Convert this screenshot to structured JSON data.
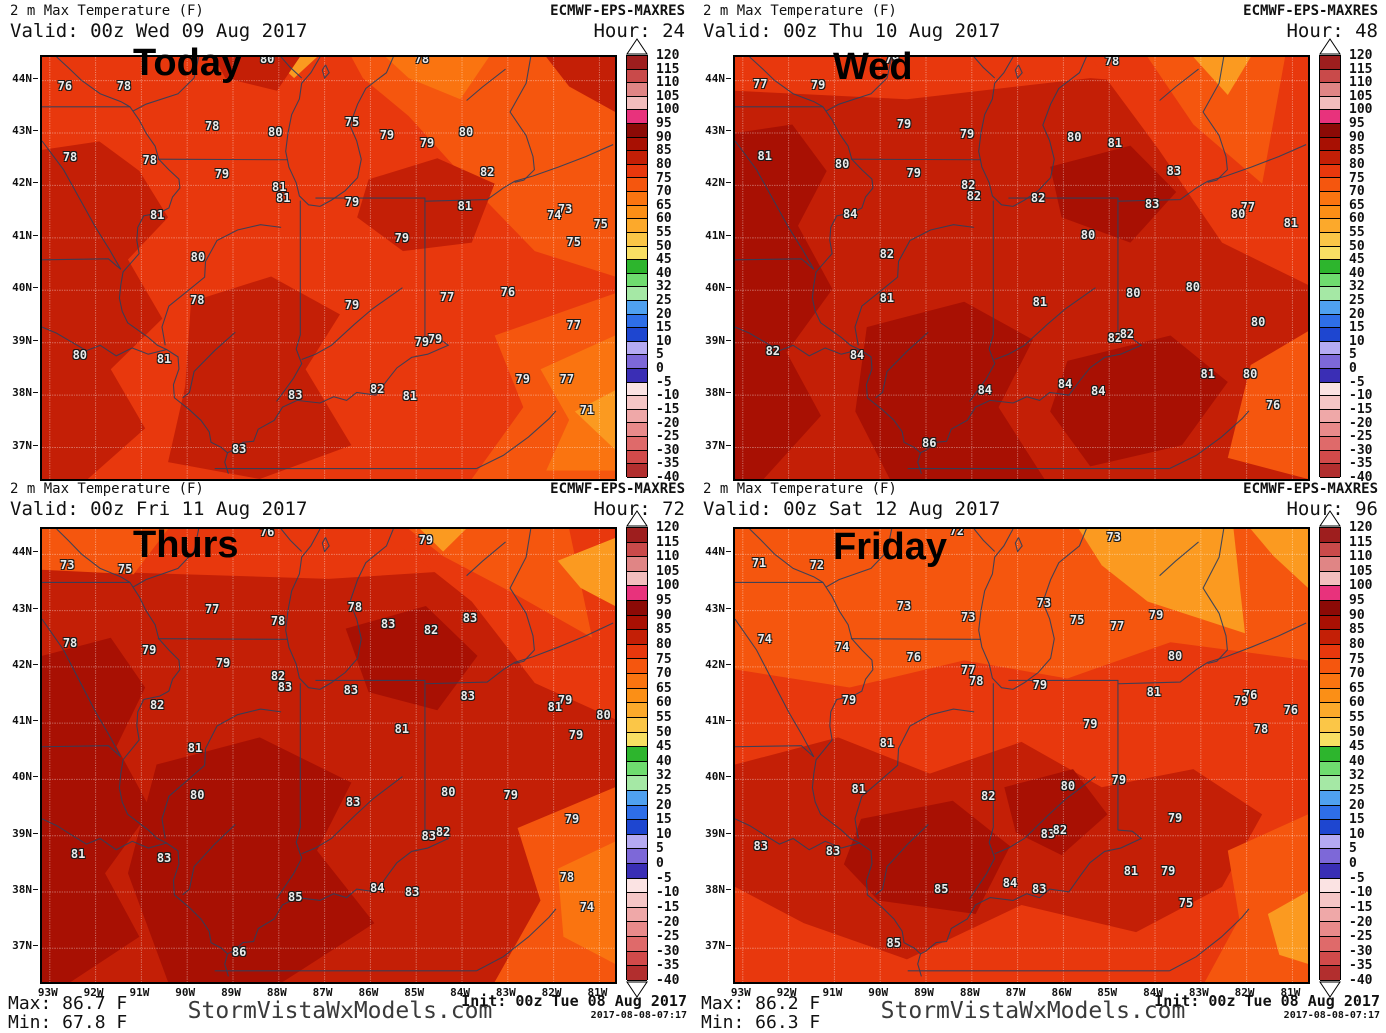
{
  "palette": {
    "base_hot": "#E8380D",
    "dark_red": "#C41F06",
    "maroon": "#A81003",
    "orange": "#F5560E",
    "light_orange": "#FA7410",
    "amber": "#FB9A20",
    "border_line": "#2F3F5C",
    "grid": "#FFFFFF"
  },
  "lat_labels": [
    "44N",
    "43N",
    "42N",
    "41N",
    "40N",
    "39N",
    "38N",
    "37N"
  ],
  "lon_labels": [
    "93W",
    "92W",
    "91W",
    "90W",
    "89W",
    "88W",
    "87W",
    "86W",
    "85W",
    "84W",
    "83W",
    "82W",
    "81W"
  ],
  "colorbar": {
    "labels": [
      "120",
      "115",
      "110",
      "105",
      "100",
      "95",
      "90",
      "85",
      "80",
      "75",
      "70",
      "65",
      "60",
      "55",
      "50",
      "45",
      "40",
      "32",
      "25",
      "20",
      "15",
      "10",
      "5",
      "0",
      "-5",
      "-10",
      "-15",
      "-20",
      "-25",
      "-30",
      "-35",
      "-40"
    ],
    "swatches": [
      "#9E1E1E",
      "#C94A4A",
      "#E08585",
      "#F2BDBD",
      "#E8327C",
      "#8C0A06",
      "#A81003",
      "#C41F06",
      "#E8380D",
      "#F5560E",
      "#FA7410",
      "#FB8F16",
      "#FCA92B",
      "#FBC647",
      "#F8DF63",
      "#2DB52D",
      "#6FDC6F",
      "#A5E8A5",
      "#4FA0F0",
      "#2E6EE8",
      "#1E46D0",
      "#B5AAF2",
      "#7D68D8",
      "#3A2EB5",
      "#FBE3E3",
      "#F5C6C6",
      "#EFA8A8",
      "#E88A8A",
      "#DF6A6A",
      "#D14A4A",
      "#B22E2E"
    ]
  },
  "panels": [
    {
      "title": "2 m Max Temperature (F)",
      "model": "ECMWF-EPS-MAXRES",
      "valid": "Valid: 00z Wed 09 Aug 2017",
      "hour": "Hour: 24",
      "annotation": "Today",
      "temps": [
        [
          80,
          39.3,
          0.5
        ],
        [
          78,
          66.3,
          0.5
        ],
        [
          76,
          4,
          6.9
        ],
        [
          78,
          14.3,
          6.9
        ],
        [
          78,
          29.7,
          16.4
        ],
        [
          80,
          40.7,
          17.8
        ],
        [
          75,
          54.1,
          15.4
        ],
        [
          79,
          60.2,
          18.5
        ],
        [
          79,
          67.2,
          20.4
        ],
        [
          80,
          74,
          17.8
        ],
        [
          78,
          4.9,
          23.7
        ],
        [
          78,
          18.8,
          24.4
        ],
        [
          79,
          31.4,
          27.7
        ],
        [
          81,
          41.4,
          30.8
        ],
        [
          81,
          42.1,
          33.4
        ],
        [
          79,
          54.1,
          34.4
        ],
        [
          82,
          77.7,
          27.3
        ],
        [
          81,
          73.8,
          35.3
        ],
        [
          73,
          91.3,
          36
        ],
        [
          74,
          89.4,
          37.4
        ],
        [
          75,
          97.5,
          39.6
        ],
        [
          81,
          20.1,
          37.4
        ],
        [
          80,
          27.2,
          47.4
        ],
        [
          75,
          92.8,
          43.8
        ],
        [
          79,
          62.8,
          42.9
        ],
        [
          78,
          27.1,
          57.6
        ],
        [
          80,
          6.6,
          70.6
        ],
        [
          81,
          21.3,
          71.6
        ],
        [
          79,
          54.1,
          58.8
        ],
        [
          77,
          70.7,
          56.9
        ],
        [
          76,
          81.3,
          55.7
        ],
        [
          77,
          92.8,
          63.5
        ],
        [
          79,
          66.3,
          67.5
        ],
        [
          79,
          68.6,
          66.8
        ],
        [
          79,
          83.9,
          76.3
        ],
        [
          77,
          91.6,
          76.3
        ],
        [
          82,
          58.5,
          78.7
        ],
        [
          81,
          64.2,
          80.3
        ],
        [
          83,
          44.2,
          80.1
        ],
        [
          71,
          95.1,
          83.6
        ],
        [
          83,
          34.4,
          92.9
        ]
      ]
    },
    {
      "title": "2 m Max Temperature (F)",
      "model": "ECMWF-EPS-MAXRES",
      "valid": "Valid: 00z Thu 10 Aug 2017",
      "hour": "Hour: 48",
      "annotation": "Wed",
      "temps": [
        [
          79,
          27.4,
          0.5
        ],
        [
          78,
          65.8,
          0.9
        ],
        [
          77,
          4.4,
          6.4
        ],
        [
          79,
          14.5,
          6.6
        ],
        [
          79,
          29.5,
          15.9
        ],
        [
          79,
          40.5,
          18.2
        ],
        [
          80,
          59.2,
          19
        ],
        [
          81,
          66.3,
          20.4
        ],
        [
          81,
          5.2,
          23.5
        ],
        [
          80,
          18.7,
          25.4
        ],
        [
          79,
          31.2,
          27.5
        ],
        [
          82,
          40.7,
          30.3
        ],
        [
          82,
          41.7,
          32.9
        ],
        [
          83,
          76.6,
          27
        ],
        [
          82,
          52.9,
          33.4
        ],
        [
          83,
          72.8,
          34.8
        ],
        [
          77,
          89.5,
          35.5
        ],
        [
          80,
          87.8,
          37.2
        ],
        [
          81,
          97,
          39.3
        ],
        [
          84,
          20.1,
          37.2
        ],
        [
          82,
          26.5,
          46.7
        ],
        [
          80,
          61.6,
          42.2
        ],
        [
          81,
          26.5,
          57.1
        ],
        [
          80,
          69.5,
          55.9
        ],
        [
          80,
          79.9,
          54.5
        ],
        [
          80,
          91.3,
          62.8
        ],
        [
          82,
          66.3,
          66.6
        ],
        [
          82,
          68.4,
          65.7
        ],
        [
          81,
          53.2,
          58.1
        ],
        [
          81,
          82.5,
          75.1
        ],
        [
          80,
          89.9,
          75.1
        ],
        [
          84,
          57.6,
          77.5
        ],
        [
          84,
          63.4,
          79.1
        ],
        [
          76,
          93.9,
          82.5
        ],
        [
          82,
          6.6,
          69.7
        ],
        [
          84,
          21.3,
          70.6
        ],
        [
          84,
          43.6,
          78.9
        ],
        [
          86,
          33.9,
          91.5
        ]
      ]
    },
    {
      "title": "2 m Max Temperature (F)",
      "model": "ECMWF-EPS-MAXRES",
      "valid": "Valid: 00z Fri 11 Aug 2017",
      "hour": "Hour: 72",
      "annotation": "Thurs",
      "footer": {
        "max": "Max: 86.7 F",
        "min": "Min: 67.8 F",
        "site": "StormVistaWxModels.com",
        "init": "Init: 00z Tue 08 Aug 2017",
        "stamp": "2017-08-08-07:17"
      },
      "temps": [
        [
          76,
          39.3,
          0.7
        ],
        [
          79,
          67,
          2.4
        ],
        [
          73,
          4.4,
          7.9
        ],
        [
          75,
          14.5,
          8.8
        ],
        [
          77,
          29.7,
          17.7
        ],
        [
          78,
          41.2,
          20.3
        ],
        [
          78,
          54.6,
          17.2
        ],
        [
          83,
          60.4,
          21
        ],
        [
          82,
          67.9,
          22.3
        ],
        [
          83,
          74.7,
          19.6
        ],
        [
          78,
          4.9,
          25.2
        ],
        [
          79,
          18.7,
          26.7
        ],
        [
          79,
          31.6,
          29.6
        ],
        [
          82,
          41.2,
          32.5
        ],
        [
          83,
          42.4,
          34.9
        ],
        [
          83,
          53.9,
          35.5
        ],
        [
          83,
          74.3,
          36.9
        ],
        [
          79,
          91.3,
          37.7
        ],
        [
          81,
          89.5,
          39.3
        ],
        [
          80,
          98,
          41.1
        ],
        [
          82,
          20.1,
          38.9
        ],
        [
          81,
          62.8,
          44.2
        ],
        [
          79,
          93.2,
          45.5
        ],
        [
          81,
          26.7,
          48.3
        ],
        [
          80,
          27.1,
          58.7
        ],
        [
          83,
          54.3,
          60.3
        ],
        [
          80,
          70.9,
          58.1
        ],
        [
          79,
          81.8,
          58.7
        ],
        [
          82,
          70,
          66.9
        ],
        [
          83,
          67.5,
          67.8
        ],
        [
          79,
          92.5,
          64
        ],
        [
          81,
          6.3,
          71.7
        ],
        [
          83,
          21.3,
          72.6
        ],
        [
          85,
          44.2,
          81.2
        ],
        [
          84,
          58.5,
          79.2
        ],
        [
          83,
          64.6,
          80.1
        ],
        [
          78,
          91.6,
          76.8
        ],
        [
          74,
          95.1,
          83.4
        ],
        [
          86,
          34.4,
          93.4
        ]
      ]
    },
    {
      "title": "2 m Max Temperature (F)",
      "model": "ECMWF-EPS-MAXRES",
      "valid": "Valid: 00z Sat 12 Aug 2017",
      "hour": "Hour: 96",
      "annotation": "Friday",
      "footer": {
        "max": "Max: 86.2 F",
        "min": "Min: 66.3 F",
        "site": "StormVistaWxModels.com",
        "init": "Init: 00z Tue 08 Aug 2017",
        "stamp": "2017-08-08-07:17"
      },
      "temps": [
        [
          72,
          38.7,
          0.5
        ],
        [
          73,
          66.1,
          1.8
        ],
        [
          71,
          4.2,
          7.5
        ],
        [
          72,
          14.3,
          7.9
        ],
        [
          73,
          29.5,
          17
        ],
        [
          73,
          40.7,
          19.4
        ],
        [
          73,
          53.9,
          16.3
        ],
        [
          75,
          59.7,
          20.1
        ],
        [
          77,
          66.7,
          21.4
        ],
        [
          79,
          73.5,
          19
        ],
        [
          74,
          5.2,
          24.3
        ],
        [
          74,
          18.7,
          26
        ],
        [
          76,
          31.2,
          28.3
        ],
        [
          77,
          40.7,
          31.1
        ],
        [
          78,
          42.1,
          33.6
        ],
        [
          79,
          53.2,
          34.4
        ],
        [
          80,
          76.8,
          28
        ],
        [
          81,
          73.1,
          36
        ],
        [
          76,
          89.9,
          36.6
        ],
        [
          79,
          88.3,
          38
        ],
        [
          76,
          97,
          40
        ],
        [
          79,
          19.9,
          37.7
        ],
        [
          79,
          62,
          43
        ],
        [
          78,
          91.8,
          44.2
        ],
        [
          81,
          26.5,
          47.2
        ],
        [
          81,
          21.6,
          57.4
        ],
        [
          82,
          44.2,
          58.9
        ],
        [
          80,
          58.1,
          56.7
        ],
        [
          79,
          67,
          55.4
        ],
        [
          79,
          76.8,
          63.8
        ],
        [
          83,
          4.5,
          70
        ],
        [
          83,
          17.1,
          71.1
        ],
        [
          83,
          54.6,
          67.3
        ],
        [
          82,
          56.7,
          66.4
        ],
        [
          81,
          69.1,
          75.5
        ],
        [
          79,
          75.6,
          75.5
        ],
        [
          85,
          36,
          79.5
        ],
        [
          84,
          48,
          78.1
        ],
        [
          83,
          53.1,
          79.5
        ],
        [
          75,
          78.7,
          82.6
        ],
        [
          85,
          27.7,
          91.4
        ]
      ]
    }
  ]
}
